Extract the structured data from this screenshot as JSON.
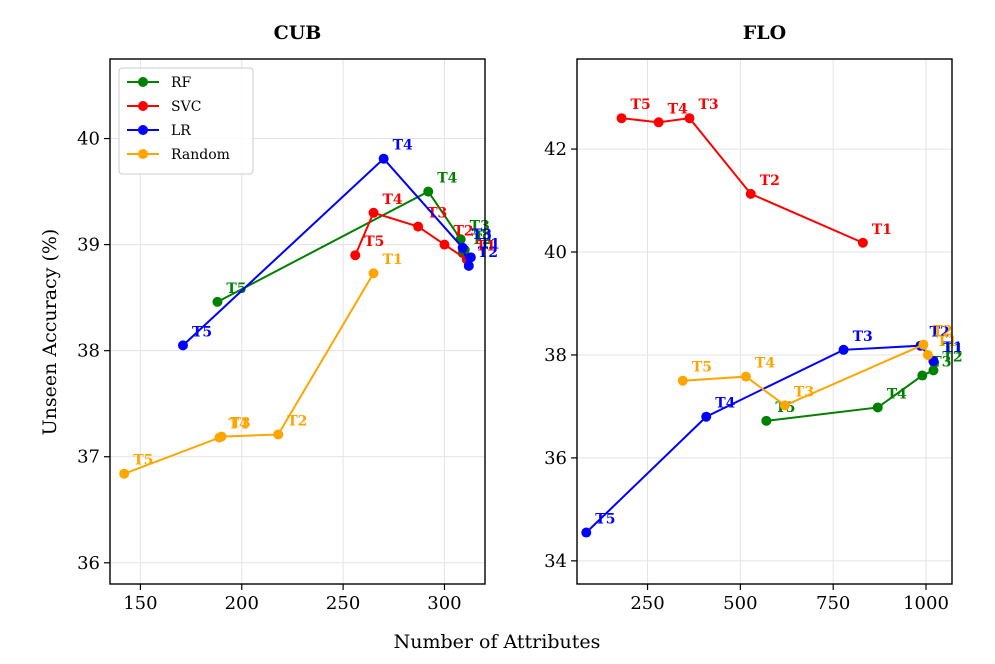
{
  "figure": {
    "xlabel": "Number of Attributes",
    "ylabel": "Unseen Accuracy (%)"
  },
  "chart_data": [
    {
      "type": "line",
      "title": "CUB",
      "xlim": [
        135,
        320
      ],
      "ylim": [
        35.8,
        40.75
      ],
      "xticks": [
        150,
        200,
        250,
        300
      ],
      "yticks": [
        36,
        37,
        38,
        39,
        40
      ],
      "legend": {
        "placement": "top-left",
        "entries": [
          "RF",
          "SVC",
          "LR",
          "Random"
        ]
      },
      "series": [
        {
          "name": "RF",
          "color": "#008000",
          "points": [
            {
              "x": 188,
              "y": 38.46,
              "label": "T5"
            },
            {
              "x": 292,
              "y": 39.5,
              "label": "T4"
            },
            {
              "x": 308,
              "y": 39.05,
              "label": "T3"
            },
            {
              "x": 309,
              "y": 38.92,
              "label": "T2"
            },
            {
              "x": 310,
              "y": 38.95,
              "label": "T1"
            }
          ]
        },
        {
          "name": "SVC",
          "color": "#ff0000",
          "points": [
            {
              "x": 256,
              "y": 38.9,
              "label": "T5"
            },
            {
              "x": 265,
              "y": 39.3,
              "label": "T4"
            },
            {
              "x": 287,
              "y": 39.17,
              "label": "T3"
            },
            {
              "x": 300,
              "y": 39.0,
              "label": "T2"
            },
            {
              "x": 311,
              "y": 38.86,
              "label": "T1"
            }
          ]
        },
        {
          "name": "LR",
          "color": "#0000ff",
          "points": [
            {
              "x": 171,
              "y": 38.05,
              "label": "T5"
            },
            {
              "x": 270,
              "y": 39.81,
              "label": "T4"
            },
            {
              "x": 309,
              "y": 38.97,
              "label": "T3"
            },
            {
              "x": 312,
              "y": 38.8,
              "label": "T2"
            },
            {
              "x": 313,
              "y": 38.88,
              "label": "T1"
            }
          ]
        },
        {
          "name": "Random",
          "color": "#ffa500",
          "points": [
            {
              "x": 142,
              "y": 36.84,
              "label": "T5"
            },
            {
              "x": 189,
              "y": 37.18,
              "label": "T4"
            },
            {
              "x": 190,
              "y": 37.19,
              "label": "T3"
            },
            {
              "x": 218,
              "y": 37.21,
              "label": "T2"
            },
            {
              "x": 265,
              "y": 38.73,
              "label": "T1"
            }
          ]
        }
      ]
    },
    {
      "type": "line",
      "title": "FLO",
      "xlim": [
        60,
        1070
      ],
      "ylim": [
        33.55,
        43.75
      ],
      "xticks": [
        250,
        500,
        750,
        1000
      ],
      "yticks": [
        34,
        36,
        38,
        40,
        42
      ],
      "series": [
        {
          "name": "RF",
          "color": "#008000",
          "points": [
            {
              "x": 570,
              "y": 36.72,
              "label": "T5"
            },
            {
              "x": 870,
              "y": 36.98,
              "label": "T4"
            },
            {
              "x": 990,
              "y": 37.6,
              "label": "T3"
            },
            {
              "x": 1020,
              "y": 37.7,
              "label": "T2"
            },
            {
              "x": 1022,
              "y": 37.85,
              "label": "T1"
            }
          ]
        },
        {
          "name": "SVC",
          "color": "#ff0000",
          "points": [
            {
              "x": 180,
              "y": 42.6,
              "label": "T5"
            },
            {
              "x": 280,
              "y": 42.52,
              "label": "T4"
            },
            {
              "x": 363,
              "y": 42.6,
              "label": "T3"
            },
            {
              "x": 528,
              "y": 41.13,
              "label": "T2"
            },
            {
              "x": 830,
              "y": 40.18,
              "label": "T1"
            }
          ]
        },
        {
          "name": "LR",
          "color": "#0000ff",
          "points": [
            {
              "x": 85,
              "y": 34.55,
              "label": "T5"
            },
            {
              "x": 408,
              "y": 36.8,
              "label": "T4"
            },
            {
              "x": 778,
              "y": 38.1,
              "label": "T3"
            },
            {
              "x": 985,
              "y": 38.18,
              "label": "T2"
            },
            {
              "x": 1020,
              "y": 37.88,
              "label": "T1"
            }
          ]
        },
        {
          "name": "Random",
          "color": "#ffa500",
          "points": [
            {
              "x": 345,
              "y": 37.5,
              "label": "T5"
            },
            {
              "x": 515,
              "y": 37.58,
              "label": "T4"
            },
            {
              "x": 620,
              "y": 37.02,
              "label": "T3"
            },
            {
              "x": 993,
              "y": 38.2,
              "label": "T2"
            },
            {
              "x": 1005,
              "y": 38.0,
              "label": "T1"
            }
          ]
        }
      ]
    }
  ]
}
